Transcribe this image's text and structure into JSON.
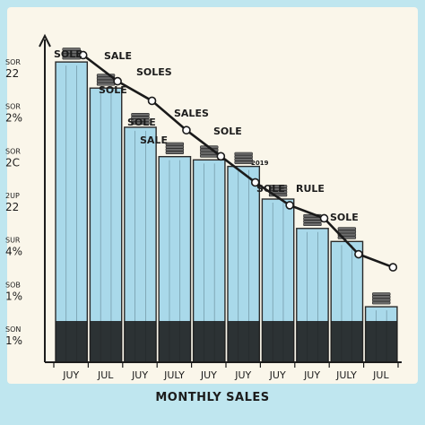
{
  "title": "MONTHLY SALES",
  "chart_data": {
    "type": "bar",
    "title": "MONTHLY SALES",
    "xlabel": "",
    "ylabel": "",
    "ylim": [
      0,
      100
    ],
    "y_tick_labels": [
      [
        "SOR",
        "22"
      ],
      [
        "SOR",
        "2%"
      ],
      [
        "SOR",
        "2C"
      ],
      [
        "2UP",
        "22"
      ],
      [
        "SUR",
        "4%"
      ],
      [
        "SOB",
        "1%"
      ],
      [
        "SON",
        "1%"
      ]
    ],
    "categories": [
      "JUY",
      "JUL",
      "JUY",
      "JULY",
      "JUY",
      "JUY",
      "JUY",
      "JUY",
      "JULY",
      "JUL"
    ],
    "series": [
      {
        "values": [
          92,
          84,
          72,
          63,
          62,
          60,
          50,
          41,
          37,
          17
        ]
      }
    ],
    "line_values": [
      93,
      85,
      79,
      70,
      62,
      54,
      47,
      43,
      32,
      28
    ],
    "annotations": [
      "SOLE",
      "SALE",
      "SOLES",
      "SOLE",
      "SOLE",
      "SALE",
      "SALES",
      "SOLE",
      "2019",
      "SOLE",
      "RULE",
      "SOLE"
    ],
    "grid": false,
    "legend": "none"
  },
  "colors": {
    "background": "#bfe6ef",
    "plot_background": "#faf6ea",
    "bar_fill": "#a9d9ea",
    "bar_stroke": "#2a2a2a",
    "bar_base": "#1a1a1a",
    "line": "#1a1a1a"
  }
}
